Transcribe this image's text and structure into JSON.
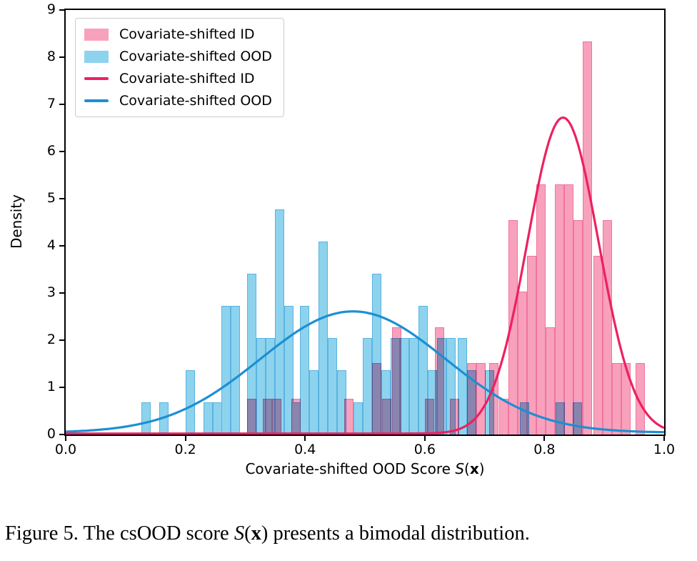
{
  "figure": {
    "caption": {
      "prefix": "Figure 5. The csOOD score ",
      "math_s": "S",
      "paren_open": "(",
      "math_x": "x",
      "paren_close": ")",
      "suffix": " presents a bimodal distribution."
    }
  },
  "axes": {
    "ylabel": "Density",
    "xlabel": {
      "prefix": "Covariate-shifted OOD Score ",
      "math_s": "S",
      "paren_open": "(",
      "math_x": "x",
      "paren_close": ")"
    },
    "xlim": [
      0.0,
      1.0
    ],
    "ylim": [
      0,
      9
    ],
    "x_ticks": [
      {
        "v": 0.0,
        "label": "0.0"
      },
      {
        "v": 0.2,
        "label": "0.2"
      },
      {
        "v": 0.4,
        "label": "0.4"
      },
      {
        "v": 0.6,
        "label": "0.6"
      },
      {
        "v": 0.8,
        "label": "0.8"
      },
      {
        "v": 1.0,
        "label": "1.0"
      }
    ],
    "y_ticks": [
      {
        "v": 0,
        "label": "0"
      },
      {
        "v": 1,
        "label": "1"
      },
      {
        "v": 2,
        "label": "2"
      },
      {
        "v": 3,
        "label": "3"
      },
      {
        "v": 4,
        "label": "4"
      },
      {
        "v": 5,
        "label": "5"
      },
      {
        "v": 6,
        "label": "6"
      },
      {
        "v": 7,
        "label": "7"
      },
      {
        "v": 8,
        "label": "8"
      },
      {
        "v": 9,
        "label": "9"
      }
    ]
  },
  "legend": {
    "items": [
      {
        "label": "Covariate-shifted ID",
        "swatch": "patch",
        "color": "#f8a1bc"
      },
      {
        "label": "Covariate-shifted OOD",
        "swatch": "patch",
        "color": "#8dd3ee"
      },
      {
        "label": "Covariate-shifted ID",
        "swatch": "line",
        "color": "#ed2160"
      },
      {
        "label": "Covariate-shifted OOD",
        "swatch": "line",
        "color": "#1d8fd2"
      }
    ]
  },
  "chart_data": {
    "type": "histogram+kde",
    "title": "",
    "xlabel": "Covariate-shifted OOD Score S(x)",
    "ylabel": "Density",
    "xlim": [
      0.0,
      1.0
    ],
    "ylim": [
      0,
      9
    ],
    "bin_width": 0.0155,
    "series": [
      {
        "name": "Covariate-shifted OOD (histogram)",
        "color": "#8dd3ee",
        "edge_color": "#5ab3e2",
        "bars": [
          [
            0.127,
            0.68
          ],
          [
            0.156,
            0.68
          ],
          [
            0.2,
            1.36
          ],
          [
            0.2305,
            0.68
          ],
          [
            0.2455,
            0.68
          ],
          [
            0.2605,
            2.73
          ],
          [
            0.276,
            2.73
          ],
          [
            0.3035,
            3.41
          ],
          [
            0.3185,
            2.05
          ],
          [
            0.334,
            2.05
          ],
          [
            0.3495,
            4.77
          ],
          [
            0.365,
            2.73
          ],
          [
            0.377,
            0.68
          ],
          [
            0.391,
            2.73
          ],
          [
            0.4065,
            1.36
          ],
          [
            0.422,
            4.09
          ],
          [
            0.4375,
            2.05
          ],
          [
            0.453,
            1.36
          ],
          [
            0.4805,
            0.68
          ],
          [
            0.496,
            2.05
          ],
          [
            0.5115,
            3.41
          ],
          [
            0.527,
            1.36
          ],
          [
            0.5425,
            2.05
          ],
          [
            0.558,
            2.05
          ],
          [
            0.5735,
            2.05
          ],
          [
            0.589,
            2.73
          ],
          [
            0.6045,
            1.36
          ],
          [
            0.62,
            2.05
          ],
          [
            0.6355,
            2.05
          ],
          [
            0.655,
            2.05
          ],
          [
            0.6705,
            1.36
          ],
          [
            0.7,
            1.36
          ],
          [
            0.759,
            0.68
          ],
          [
            0.818,
            0.68
          ],
          [
            0.847,
            0.68
          ]
        ]
      },
      {
        "name": "Covariate-shifted ID (histogram)",
        "color": "#f8a1bc",
        "edge_color": "#f2739f",
        "bars": [
          [
            0.3035,
            0.76
          ],
          [
            0.329,
            0.76
          ],
          [
            0.3445,
            0.76
          ],
          [
            0.377,
            0.76
          ],
          [
            0.465,
            0.76
          ],
          [
            0.512,
            1.52
          ],
          [
            0.528,
            0.76
          ],
          [
            0.545,
            2.28
          ],
          [
            0.6,
            0.76
          ],
          [
            0.617,
            2.28
          ],
          [
            0.642,
            0.76
          ],
          [
            0.6705,
            1.52
          ],
          [
            0.686,
            1.52
          ],
          [
            0.708,
            1.52
          ],
          [
            0.724,
            0.76
          ],
          [
            0.74,
            4.55
          ],
          [
            0.7555,
            3.03
          ],
          [
            0.771,
            3.79
          ],
          [
            0.7865,
            5.31
          ],
          [
            0.802,
            2.28
          ],
          [
            0.8175,
            5.31
          ],
          [
            0.833,
            5.31
          ],
          [
            0.8485,
            4.55
          ],
          [
            0.864,
            8.34
          ],
          [
            0.882,
            3.79
          ],
          [
            0.8975,
            4.55
          ],
          [
            0.913,
            1.52
          ],
          [
            0.9285,
            1.52
          ],
          [
            0.952,
            1.52
          ]
        ]
      }
    ],
    "kde": [
      {
        "name": "Covariate-shifted OOD (kde)",
        "color": "#1d8fd2",
        "peak_x": 0.48,
        "peak_y": 2.57,
        "sigma": 0.155,
        "baseline": 0.04
      },
      {
        "name": "Covariate-shifted ID (kde)",
        "color": "#ed2160",
        "peak_x": 0.831,
        "peak_y": 6.7,
        "sigma": 0.0595,
        "baseline": 0.02
      }
    ],
    "legend_position": "upper left",
    "grid": false
  }
}
